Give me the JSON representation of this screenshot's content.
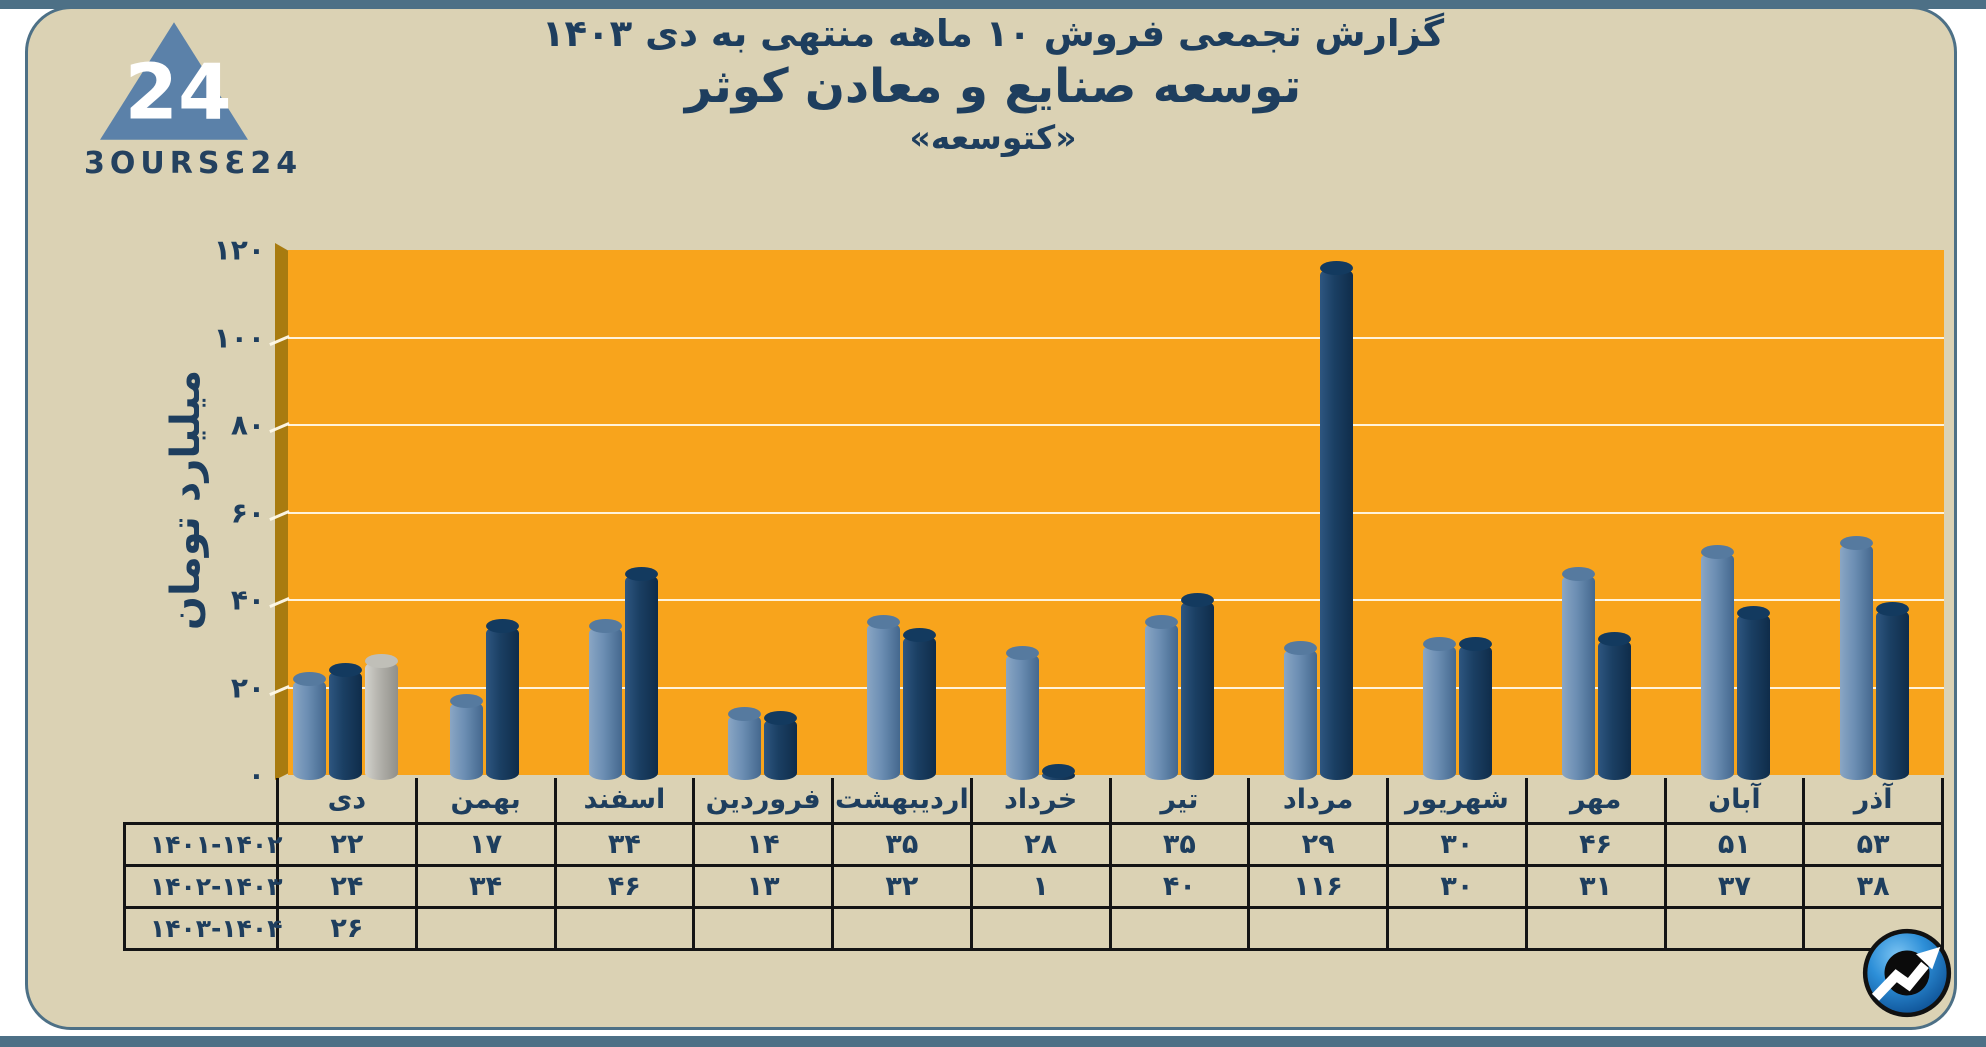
{
  "brand": {
    "logo_text": "3OURSƐ24",
    "logo_number": "24"
  },
  "header": {
    "title_line1": "گزارش تجمعی فروش ۱۰ ماهه منتهی به دی ۱۴۰۳",
    "title_line2": "توسعه صنایع و معادن کوثر",
    "title_line3": "«کتوسعه»"
  },
  "colors": {
    "frame": "#4d7086",
    "card_bg": "#dbd2b4",
    "plot_bg": "#f8a41c",
    "plot_wall": "#a87b10",
    "text_navy": "#1e3e5e",
    "table_border": "#141414",
    "series1": "#6d8fb4",
    "series2": "#1b4064",
    "series3": "#b4b3ad"
  },
  "chart_data": {
    "type": "bar",
    "title": "گزارش تجمعی فروش ۱۰ ماهه منتهی به دی ۱۴۰۳ — توسعه صنایع و معادن کوثر «کتوسعه»",
    "xlabel": "",
    "ylabel": "میلیارد تومان",
    "ylim": [
      0,
      120
    ],
    "ytick_step": 20,
    "grid": true,
    "legend_position": "table-left",
    "categories": [
      "دی",
      "بهمن",
      "اسفند",
      "فروردین",
      "اردیبهشت",
      "خرداد",
      "تیر",
      "مرداد",
      "شهریور",
      "مهر",
      "آبان",
      "آذر"
    ],
    "series": [
      {
        "name": "۱۴۰۱-۱۴۰۲",
        "color": "#6d8fb4",
        "values": [
          22,
          17,
          34,
          14,
          35,
          28,
          35,
          29,
          30,
          46,
          51,
          53
        ]
      },
      {
        "name": "۱۴۰۲-۱۴۰۳",
        "color": "#1b4064",
        "values": [
          24,
          34,
          46,
          13,
          32,
          1,
          40,
          116,
          30,
          31,
          37,
          38
        ]
      },
      {
        "name": "۱۴۰۳-۱۴۰۴",
        "color": "#b4b3ad",
        "values": [
          26,
          null,
          null,
          null,
          null,
          null,
          null,
          null,
          null,
          null,
          null,
          null
        ]
      }
    ]
  }
}
